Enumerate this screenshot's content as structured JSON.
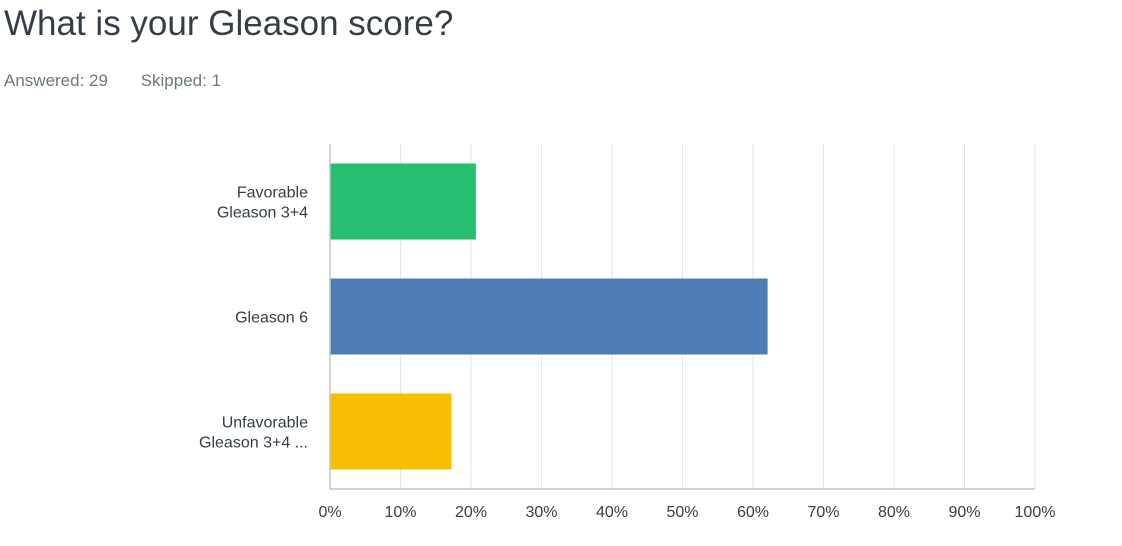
{
  "question": {
    "title": "What is your Gleason score?",
    "answered": "Answered: 29",
    "skipped": "Skipped: 1"
  },
  "chart_data": {
    "type": "bar",
    "orientation": "horizontal",
    "categories": [
      [
        "Favorable",
        "Gleason 3+4"
      ],
      [
        "Gleason 6"
      ],
      [
        "Unfavorable",
        "Gleason 3+4 ..."
      ]
    ],
    "values": [
      20.69,
      62.07,
      17.24
    ],
    "colors": [
      "#26bf6f",
      "#507cb6",
      "#f9be00"
    ],
    "xlim": [
      0,
      100
    ],
    "xticks": [
      0,
      10,
      20,
      30,
      40,
      50,
      60,
      70,
      80,
      90,
      100
    ],
    "tick_format": "%",
    "grid": true
  }
}
